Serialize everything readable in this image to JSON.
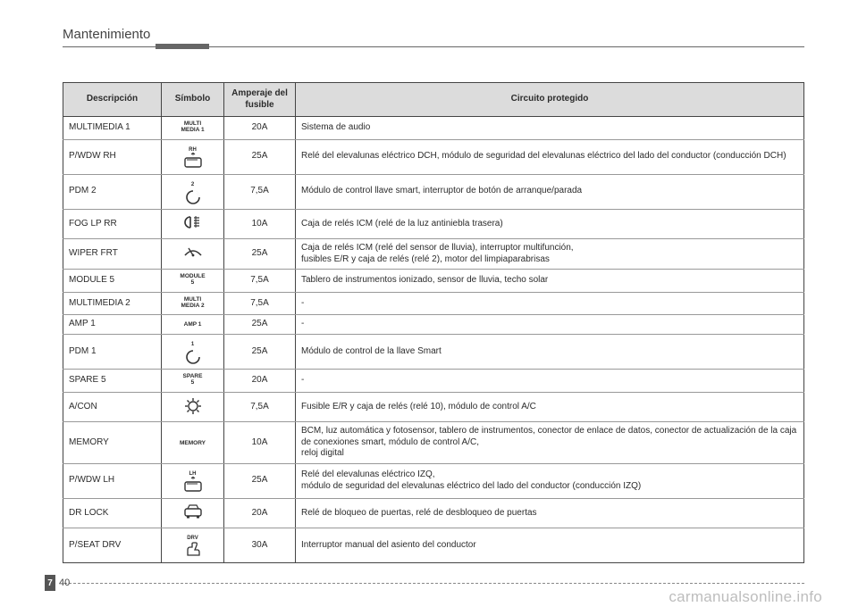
{
  "section_title": "Mantenimiento",
  "page": {
    "chapter": "7",
    "num": "40"
  },
  "watermark": "carmanualsonline.info",
  "table": {
    "headers": {
      "desc": "Descripción",
      "symbol": "Símbolo",
      "amp": "Amperaje del fusible",
      "circuit": "Circuito protegido"
    },
    "rows": [
      {
        "desc": "MULTIMEDIA 1",
        "symbol_text": "MULTI\nMEDIA 1",
        "amp": "20A",
        "circuit": "Sistema de audio"
      },
      {
        "desc": "P/WDW RH",
        "symbol_icon": "window_rh",
        "amp": "25A",
        "circuit": "Relé del elevalunas eléctrico DCH, módulo de seguridad del elevalunas eléctrico del lado del conductor (conducción DCH)"
      },
      {
        "desc": "PDM 2",
        "symbol_icon": "ring2",
        "amp": "7,5A",
        "circuit": "Módulo de control llave smart, interruptor de botón de arranque/parada"
      },
      {
        "desc": "FOG LP RR",
        "symbol_icon": "fog_rr",
        "amp": "10A",
        "circuit": "Caja de relés ICM (relé de la luz antiniebla trasera)"
      },
      {
        "desc": "WIPER FRT",
        "symbol_icon": "wiper",
        "amp": "25A",
        "circuit": "Caja de relés ICM (relé del sensor de lluvia), interruptor multifunción,\nfusibles E/R y caja de relés (relé 2), motor del limpiaparabrisas"
      },
      {
        "desc": "MODULE 5",
        "symbol_text": "MODULE\n5",
        "amp": "7,5A",
        "circuit": "Tablero de instrumentos ionizado, sensor de lluvia, techo solar"
      },
      {
        "desc": "MULTIMEDIA 2",
        "symbol_text": "MULTI\nMEDIA 2",
        "amp": "7,5A",
        "circuit": "-"
      },
      {
        "desc": "AMP 1",
        "symbol_text": "AMP 1",
        "amp": "25A",
        "circuit": "-"
      },
      {
        "desc": "PDM 1",
        "symbol_icon": "ring1",
        "amp": "25A",
        "circuit": "Módulo de control de la llave Smart"
      },
      {
        "desc": "SPARE 5",
        "symbol_text": "SPARE\n5",
        "amp": "20A",
        "circuit": "-"
      },
      {
        "desc": "A/CON",
        "symbol_icon": "snow",
        "amp": "7,5A",
        "circuit": "Fusible E/R y caja de relés (relé 10), módulo de control A/C"
      },
      {
        "desc": "MEMORY",
        "symbol_text": "MEMORY",
        "amp": "10A",
        "circuit": "BCM, luz automática y fotosensor, tablero de instrumentos, conector de enlace de datos, conector de actualización de la caja de conexiones smart, módulo de control A/C,\nreloj digital"
      },
      {
        "desc": "P/WDW LH",
        "symbol_icon": "window_lh",
        "amp": "25A",
        "circuit": "Relé del elevalunas eléctrico IZQ,\nmódulo de seguridad del elevalunas eléctrico del lado del conductor (conducción IZQ)"
      },
      {
        "desc": "DR LOCK",
        "symbol_icon": "car",
        "amp": "20A",
        "circuit": "Relé de bloqueo de puertas, relé de desbloqueo de puertas"
      },
      {
        "desc": "P/SEAT DRV",
        "symbol_icon": "seat_drv",
        "amp": "30A",
        "circuit": "Interruptor manual del asiento del conductor"
      }
    ]
  }
}
